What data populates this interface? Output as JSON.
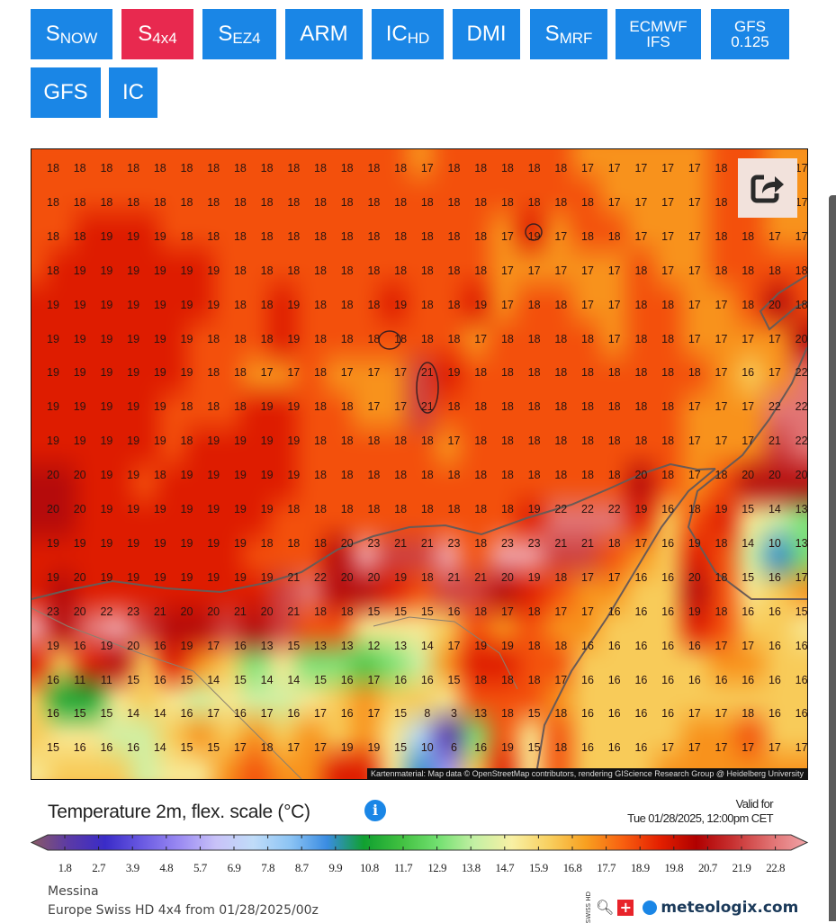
{
  "models": [
    {
      "main": "S",
      "sub": "NOW",
      "active": false
    },
    {
      "main": "S",
      "sub": "4x4",
      "active": true
    },
    {
      "main": "S",
      "sub": "EZ4",
      "active": false
    },
    {
      "main": "ARM",
      "sub": "",
      "active": false
    },
    {
      "main": "IC",
      "sub": "HD",
      "active": false
    },
    {
      "main": "DMI",
      "sub": "",
      "active": false
    },
    {
      "main": "S",
      "sub": "MRF",
      "active": false
    },
    {
      "main": "ECMWF",
      "sub": "IFS",
      "active": false,
      "stacked": true
    },
    {
      "main": "GFS",
      "sub": "0.125",
      "active": false,
      "stacked": true
    },
    {
      "main": "GFS",
      "sub": "",
      "active": false
    },
    {
      "main": "IC",
      "sub": "",
      "active": false
    }
  ],
  "colors": {
    "button": "#1a86e6",
    "button_active": "#e8294f"
  },
  "map": {
    "share_icon": "share-icon",
    "attribution": "Kartenmaterial: Map data © OpenStreetMap contributors, rendering GIScience Research Group @ Heidelberg University",
    "grid": [
      [
        18,
        18,
        18,
        18,
        18,
        18,
        18,
        18,
        18,
        18,
        18,
        18,
        18,
        18,
        17,
        18,
        18,
        18,
        18,
        18,
        17,
        17,
        17,
        17,
        17,
        18,
        null,
        null,
        17
      ],
      [
        18,
        18,
        18,
        18,
        18,
        18,
        18,
        18,
        18,
        18,
        18,
        18,
        18,
        18,
        18,
        18,
        18,
        18,
        18,
        18,
        18,
        17,
        17,
        17,
        17,
        18,
        null,
        null,
        17
      ],
      [
        18,
        18,
        19,
        19,
        19,
        18,
        18,
        18,
        18,
        18,
        18,
        18,
        18,
        18,
        18,
        18,
        18,
        17,
        19,
        17,
        18,
        18,
        17,
        17,
        17,
        18,
        18,
        17,
        17
      ],
      [
        18,
        19,
        19,
        19,
        19,
        19,
        19,
        18,
        18,
        18,
        18,
        18,
        18,
        18,
        18,
        18,
        18,
        17,
        17,
        17,
        17,
        17,
        18,
        17,
        17,
        18,
        18,
        18,
        18
      ],
      [
        19,
        19,
        19,
        19,
        19,
        19,
        19,
        18,
        18,
        19,
        18,
        18,
        18,
        19,
        18,
        18,
        19,
        17,
        18,
        18,
        17,
        17,
        18,
        18,
        17,
        17,
        18,
        20,
        18
      ],
      [
        19,
        19,
        19,
        19,
        19,
        19,
        18,
        18,
        18,
        19,
        18,
        18,
        18,
        18,
        18,
        18,
        17,
        18,
        18,
        18,
        18,
        17,
        18,
        18,
        17,
        17,
        17,
        17,
        20
      ],
      [
        19,
        19,
        19,
        19,
        19,
        19,
        18,
        18,
        17,
        17,
        18,
        17,
        17,
        17,
        21,
        19,
        18,
        18,
        18,
        18,
        18,
        18,
        18,
        18,
        18,
        17,
        16,
        17,
        22
      ],
      [
        19,
        19,
        19,
        19,
        19,
        18,
        18,
        18,
        19,
        19,
        18,
        18,
        17,
        17,
        21,
        18,
        18,
        18,
        18,
        18,
        18,
        18,
        18,
        18,
        17,
        17,
        17,
        22,
        22
      ],
      [
        19,
        19,
        19,
        19,
        19,
        18,
        19,
        19,
        19,
        19,
        18,
        18,
        18,
        18,
        18,
        17,
        18,
        18,
        18,
        18,
        18,
        18,
        18,
        18,
        17,
        17,
        17,
        21,
        22
      ],
      [
        20,
        20,
        19,
        19,
        18,
        19,
        19,
        19,
        19,
        19,
        18,
        18,
        18,
        18,
        18,
        18,
        18,
        18,
        18,
        18,
        18,
        18,
        20,
        18,
        17,
        18,
        20,
        20,
        20
      ],
      [
        20,
        20,
        19,
        19,
        19,
        19,
        19,
        19,
        19,
        18,
        18,
        18,
        18,
        18,
        18,
        18,
        18,
        18,
        19,
        22,
        22,
        22,
        19,
        16,
        18,
        19,
        15,
        14,
        13
      ],
      [
        19,
        19,
        19,
        19,
        19,
        19,
        19,
        19,
        18,
        18,
        18,
        20,
        23,
        21,
        21,
        23,
        18,
        23,
        23,
        21,
        21,
        18,
        17,
        16,
        19,
        18,
        14,
        10,
        13
      ],
      [
        19,
        20,
        19,
        19,
        19,
        19,
        19,
        19,
        19,
        21,
        22,
        20,
        20,
        19,
        18,
        21,
        21,
        20,
        19,
        18,
        17,
        17,
        16,
        16,
        20,
        18,
        15,
        16,
        17
      ],
      [
        23,
        20,
        22,
        23,
        21,
        20,
        20,
        21,
        20,
        21,
        18,
        18,
        15,
        15,
        15,
        16,
        18,
        17,
        18,
        17,
        17,
        16,
        16,
        16,
        19,
        18,
        16,
        16,
        15
      ],
      [
        19,
        16,
        19,
        20,
        16,
        19,
        17,
        16,
        13,
        15,
        13,
        13,
        12,
        13,
        14,
        17,
        19,
        19,
        18,
        18,
        16,
        16,
        16,
        16,
        16,
        17,
        17,
        16,
        16
      ],
      [
        16,
        11,
        11,
        15,
        16,
        15,
        14,
        15,
        14,
        14,
        15,
        16,
        17,
        16,
        16,
        15,
        18,
        18,
        18,
        17,
        16,
        16,
        16,
        16,
        16,
        16,
        16,
        16,
        16
      ],
      [
        16,
        15,
        15,
        14,
        14,
        16,
        17,
        16,
        17,
        16,
        17,
        16,
        17,
        15,
        8,
        3,
        13,
        18,
        15,
        18,
        16,
        16,
        16,
        16,
        17,
        17,
        18,
        16,
        16
      ],
      [
        15,
        16,
        16,
        16,
        14,
        15,
        15,
        17,
        18,
        17,
        17,
        19,
        19,
        15,
        10,
        6,
        16,
        19,
        15,
        18,
        16,
        16,
        16,
        17,
        17,
        17,
        17,
        17,
        17
      ]
    ]
  },
  "legend": {
    "title": "Temperature 2m, flex. scale (°C)",
    "info_icon": "info-icon",
    "valid_label": "Valid for",
    "valid_time": "Tue 01/28/2025, 12:00pm CET",
    "ticks": [
      "1.8",
      "2.7",
      "3.9",
      "4.8",
      "5.7",
      "6.9",
      "7.8",
      "8.7",
      "9.9",
      "10.8",
      "11.7",
      "12.9",
      "13.8",
      "14.7",
      "15.9",
      "16.8",
      "17.7",
      "18.9",
      "19.8",
      "20.7",
      "21.9",
      "22.8"
    ],
    "colorscale": [
      "#8a5a66",
      "#5b3aa6",
      "#3a2cc8",
      "#6a5ae2",
      "#9a8af2",
      "#c8c2f8",
      "#c0dcf8",
      "#8cc4f4",
      "#3a8ce2",
      "#10a030",
      "#40c040",
      "#72e070",
      "#c4f0a4",
      "#f8f0a4",
      "#f8d060",
      "#f8a020",
      "#f86010",
      "#e42000",
      "#b00000",
      "#c83232",
      "#e07070",
      "#f0a4a8"
    ],
    "location": "Messina",
    "model_run": "Europe Swiss HD 4x4 from 01/28/2025/00z",
    "brand": "meteologix.com",
    "badge": "SWISS HD"
  }
}
